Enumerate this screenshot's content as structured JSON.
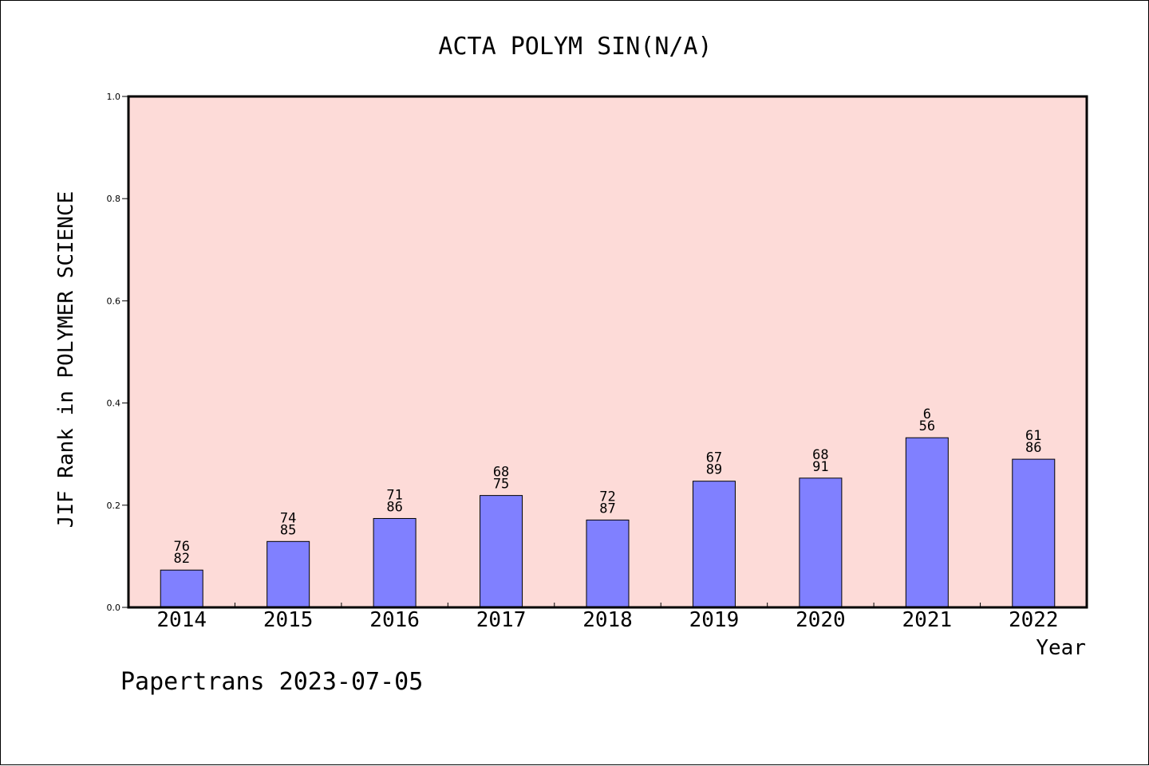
{
  "chart_data": {
    "type": "bar",
    "title": "ACTA POLYM SIN(N/A)",
    "xlabel": "Year",
    "ylabel": "JIF Rank in POLYMER SCIENCE",
    "categories": [
      "2014",
      "2015",
      "2016",
      "2017",
      "2018",
      "2019",
      "2020",
      "2021",
      "2022"
    ],
    "values": [
      0.073,
      0.129,
      0.174,
      0.219,
      0.171,
      0.247,
      0.253,
      0.332,
      0.29
    ],
    "bar_labels": [
      {
        "top": "76",
        "bottom": "82"
      },
      {
        "top": "74",
        "bottom": "85"
      },
      {
        "top": "71",
        "bottom": "86"
      },
      {
        "top": "68",
        "bottom": "75"
      },
      {
        "top": "72",
        "bottom": "87"
      },
      {
        "top": "67",
        "bottom": "89"
      },
      {
        "top": "68",
        "bottom": "91"
      },
      {
        "top": "6",
        "bottom": "56"
      },
      {
        "top": "61",
        "bottom": "86"
      }
    ],
    "ylim": [
      0,
      1
    ],
    "yticks": [
      "0.0",
      "0.2",
      "0.4",
      "0.6",
      "0.8",
      "1.0"
    ],
    "grid": false,
    "colors": {
      "plot_background": "#fddbd8",
      "bar_fill": "#8080ff",
      "bar_stroke": "#000000"
    }
  },
  "footer": {
    "credit": "Papertrans 2023-07-05"
  }
}
